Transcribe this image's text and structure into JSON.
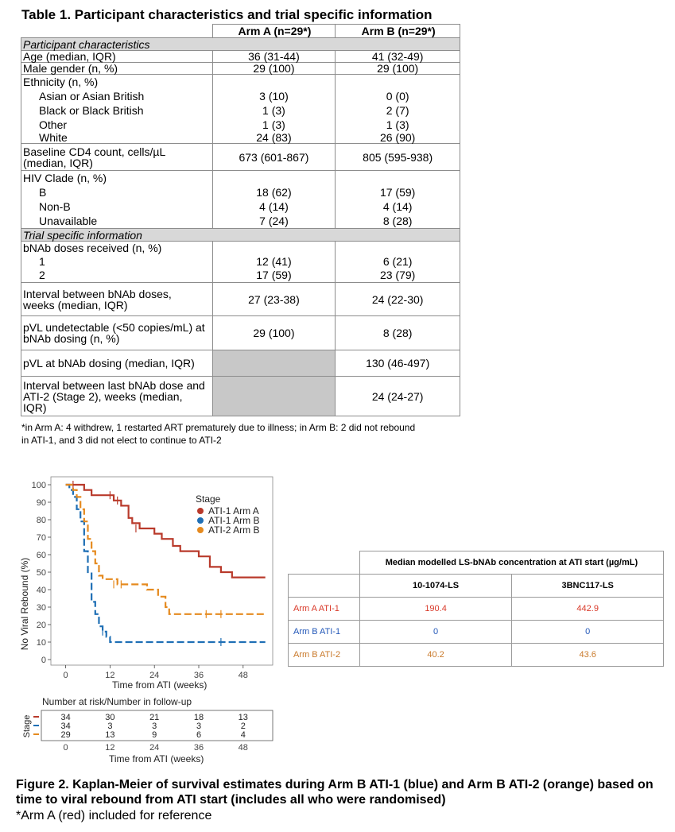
{
  "table1": {
    "title": "Table 1. Participant characteristics and trial specific information",
    "arm_a_header": "Arm A (n=29*)",
    "arm_b_header": "Arm B (n=29*)",
    "section1": "Participant characteristics",
    "age": {
      "label": "Age (median, IQR)",
      "a": "36 (31-44)",
      "b": "41 (32-49)"
    },
    "male": {
      "label": "Male gender (n, %)",
      "a": "29 (100)",
      "b": "29 (100)"
    },
    "ethnicity_label": "Ethnicity (n, %)",
    "ethnicity": [
      {
        "label": "Asian or Asian British",
        "a": "3 (10)",
        "b": "0 (0)"
      },
      {
        "label": "Black or Black British",
        "a": "1 (3)",
        "b": "2 (7)"
      },
      {
        "label": "Other",
        "a": "1 (3)",
        "b": "1 (3)"
      },
      {
        "label": "White",
        "a": "24 (83)",
        "b": "26 (90)"
      }
    ],
    "cd4": {
      "label1": "Baseline CD4 count, cells/µL",
      "label2": "(median, IQR)",
      "a": "673 (601-867)",
      "b": "805 (595-938)"
    },
    "clade_label": "HIV Clade (n, %)",
    "clade": [
      {
        "label": "B",
        "a": "18 (62)",
        "b": "17 (59)"
      },
      {
        "label": "Non-B",
        "a": "4 (14)",
        "b": "4 (14)"
      },
      {
        "label": "Unavailable",
        "a": "7 (24)",
        "b": "8 (28)"
      }
    ],
    "section2": "Trial specific information",
    "doses_label": "bNAb doses received (n, %)",
    "doses": [
      {
        "label": "1",
        "a": "12 (41)",
        "b": "6 (21)"
      },
      {
        "label": "2",
        "a": "17 (59)",
        "b": "23 (79)"
      }
    ],
    "interval": {
      "label1": "Interval between bNAb doses,",
      "label2": "weeks (median, IQR)",
      "a": "27 (23-38)",
      "b": "24 (22-30)"
    },
    "pvl_undet": {
      "label1": "pVL undetectable (<50 copies/mL) at",
      "label2": "bNAb dosing (n, %)",
      "a": "29 (100)",
      "b": "8 (28)"
    },
    "pvl_dosing": {
      "label": "pVL at bNAb dosing (median, IQR)",
      "b": "130 (46-497)"
    },
    "interval_last": {
      "label1": "Interval between last bNAb dose and",
      "label2": "ATI-2 (Stage 2), weeks (median,",
      "label3": "IQR)",
      "b": "24 (24-27)"
    },
    "footnote1": "*in Arm A: 4 withdrew, 1 restarted ART prematurely due to illness; in Arm B: 2 did not rebound",
    "footnote2": "in ATI-1, and 3 did not elect to continue to ATI-2"
  },
  "chart_data": {
    "type": "line",
    "xlabel": "Time from ATI (weeks)",
    "ylabel": "No Viral Rebound (%)",
    "xlim": [
      -4,
      56
    ],
    "ylim": [
      0,
      100
    ],
    "x_ticks": [
      "0",
      "12",
      "24",
      "36",
      "48"
    ],
    "y_ticks": [
      "0",
      "10",
      "20",
      "30",
      "40",
      "50",
      "60",
      "70",
      "80",
      "90",
      "100"
    ],
    "grid": false,
    "legend_title": "Stage",
    "legend_position": "top-right",
    "series": [
      {
        "name": "ATI-1 Arm A",
        "color": "#b93a2b",
        "dash": false,
        "steps": [
          [
            0,
            100
          ],
          [
            3,
            100
          ],
          [
            5,
            97
          ],
          [
            7,
            94
          ],
          [
            13,
            91
          ],
          [
            15,
            88
          ],
          [
            17,
            81
          ],
          [
            18,
            78
          ],
          [
            20,
            75
          ],
          [
            24,
            72
          ],
          [
            26,
            69
          ],
          [
            29,
            65
          ],
          [
            31,
            62
          ],
          [
            36,
            59
          ],
          [
            39,
            53
          ],
          [
            42,
            50
          ],
          [
            45,
            47
          ],
          [
            54,
            47
          ]
        ],
        "censor": [
          [
            2,
            100
          ],
          [
            12,
            94
          ],
          [
            14,
            91
          ],
          [
            19,
            75
          ]
        ]
      },
      {
        "name": "ATI-1 Arm B",
        "color": "#1f6fb5",
        "dash": true,
        "steps": [
          [
            0,
            100
          ],
          [
            1,
            97
          ],
          [
            2,
            93
          ],
          [
            3,
            86
          ],
          [
            4,
            79
          ],
          [
            5,
            62
          ],
          [
            6,
            50
          ],
          [
            7,
            33
          ],
          [
            8,
            26
          ],
          [
            9,
            19
          ],
          [
            10,
            16
          ],
          [
            11,
            13
          ],
          [
            12,
            10
          ],
          [
            54,
            10
          ]
        ],
        "censor": [
          [
            10,
            16
          ],
          [
            42,
            10
          ]
        ]
      },
      {
        "name": "ATI-2 Arm B",
        "color": "#e58a1f",
        "dash": true,
        "steps": [
          [
            0,
            100
          ],
          [
            2,
            97
          ],
          [
            3,
            93
          ],
          [
            4,
            86
          ],
          [
            5,
            79
          ],
          [
            6,
            69
          ],
          [
            7,
            62
          ],
          [
            8,
            55
          ],
          [
            9,
            48
          ],
          [
            10,
            46
          ],
          [
            14,
            43
          ],
          [
            22,
            40
          ],
          [
            25,
            36
          ],
          [
            27,
            30
          ],
          [
            28,
            26
          ],
          [
            54,
            26
          ]
        ],
        "censor": [
          [
            13,
            43
          ],
          [
            15,
            43
          ],
          [
            38,
            26
          ],
          [
            42,
            26
          ]
        ]
      }
    ]
  },
  "risk_table": {
    "title": "Number at risk/Number in follow-up",
    "ylabel": "Stage",
    "xlabel": "Time from ATI (weeks)",
    "x_ticks": [
      "0",
      "12",
      "24",
      "36",
      "48"
    ],
    "rows": [
      {
        "color": "#b93a2b",
        "values": [
          "34",
          "30",
          "21",
          "18",
          "13"
        ]
      },
      {
        "color": "#1f6fb5",
        "values": [
          "34",
          "3",
          "3",
          "3",
          "2"
        ]
      },
      {
        "color": "#e58a1f",
        "values": [
          "29",
          "13",
          "9",
          "6",
          "4"
        ]
      }
    ]
  },
  "table2": {
    "header": "Median modelled LS-bNAb concentration at ATI start (µg/mL)",
    "col1": "10-1074-LS",
    "col2": "3BNC117-LS",
    "rows": [
      {
        "label": "Arm A ATI-1",
        "v1": "190.4",
        "v2": "442.9",
        "color": "#d93a2a"
      },
      {
        "label": "Arm B ATI-1",
        "v1": "0",
        "v2": "0",
        "color": "#2257b8"
      },
      {
        "label": "Arm B ATI-2",
        "v1": "40.2",
        "v2": "43.6",
        "color": "#c9792a"
      }
    ]
  },
  "figure2": {
    "caption": "Figure 2. Kaplan-Meier of survival estimates during Arm B ATI-1 (blue) and Arm B ATI-2 (orange) based on time to viral rebound from ATI start (includes all who were randomised)",
    "note": "*Arm A (red) included for reference"
  }
}
